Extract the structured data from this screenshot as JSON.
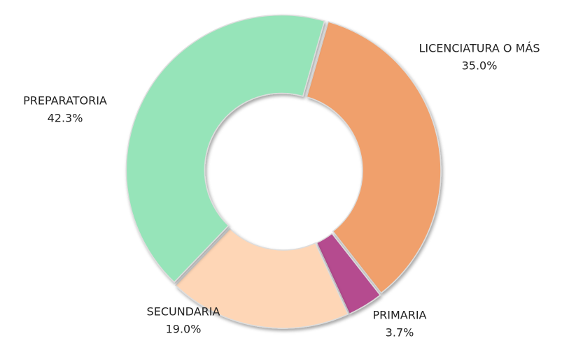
{
  "chart_data": {
    "type": "donut",
    "categories": [
      "LICENCIATURA O MÁS",
      "PRIMARIA",
      "SECUNDARIA",
      "PREPARATORIA"
    ],
    "values": [
      35.0,
      3.7,
      19.0,
      42.3
    ],
    "value_labels": [
      "35.0%",
      "3.7%",
      "19.0%",
      "42.3%"
    ],
    "colors": [
      "#f0a06c",
      "#b54b8f",
      "#fed6b6",
      "#96e4b9"
    ]
  }
}
